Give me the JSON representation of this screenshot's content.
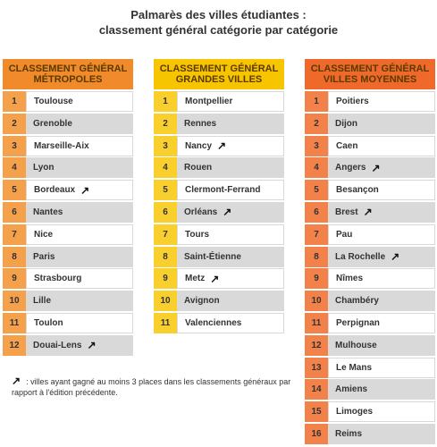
{
  "title_line1": "Palmarès des villes étudiantes :",
  "title_line2": "classement général catégorie par catégorie",
  "columns": [
    {
      "header": "CLASSEMENT GÉNÉRAL MÉTROPOLES",
      "header_color": "#f08a2a",
      "num_color": "#f5a04a",
      "rows": [
        {
          "rank": "1",
          "city": "Toulouse",
          "up": false
        },
        {
          "rank": "2",
          "city": "Grenoble",
          "up": false
        },
        {
          "rank": "3",
          "city": "Marseille-Aix",
          "up": false
        },
        {
          "rank": "4",
          "city": "Lyon",
          "up": false
        },
        {
          "rank": "5",
          "city": "Bordeaux",
          "up": true
        },
        {
          "rank": "6",
          "city": "Nantes",
          "up": false
        },
        {
          "rank": "7",
          "city": "Nice",
          "up": false
        },
        {
          "rank": "8",
          "city": "Paris",
          "up": false
        },
        {
          "rank": "9",
          "city": "Strasbourg",
          "up": false
        },
        {
          "rank": "10",
          "city": "Lille",
          "up": false
        },
        {
          "rank": "11",
          "city": "Toulon",
          "up": false
        },
        {
          "rank": "12",
          "city": "Douai-Lens",
          "up": true
        }
      ]
    },
    {
      "header": "CLASSEMENT GÉNÉRAL GRANDES VILLES",
      "header_color": "#f7c400",
      "num_color": "#f9cf2e",
      "rows": [
        {
          "rank": "1",
          "city": "Montpellier",
          "up": false
        },
        {
          "rank": "2",
          "city": "Rennes",
          "up": false
        },
        {
          "rank": "3",
          "city": "Nancy",
          "up": true
        },
        {
          "rank": "4",
          "city": "Rouen",
          "up": false
        },
        {
          "rank": "5",
          "city": "Clermont-Ferrand",
          "up": false
        },
        {
          "rank": "6",
          "city": "Orléans",
          "up": true
        },
        {
          "rank": "7",
          "city": "Tours",
          "up": false
        },
        {
          "rank": "8",
          "city": "Saint-Étienne",
          "up": false
        },
        {
          "rank": "9",
          "city": "Metz",
          "up": true
        },
        {
          "rank": "10",
          "city": "Avignon",
          "up": false
        },
        {
          "rank": "11",
          "city": "Valenciennes",
          "up": false
        }
      ]
    },
    {
      "header": "CLASSEMENT GÉNÉRAL VILLES MOYENNES",
      "header_color": "#ef6a2a",
      "num_color": "#f2824a",
      "rows": [
        {
          "rank": "1",
          "city": "Poitiers",
          "up": false
        },
        {
          "rank": "2",
          "city": "Dijon",
          "up": false
        },
        {
          "rank": "3",
          "city": "Caen",
          "up": false
        },
        {
          "rank": "4",
          "city": "Angers",
          "up": true
        },
        {
          "rank": "5",
          "city": "Besançon",
          "up": false
        },
        {
          "rank": "6",
          "city": "Brest",
          "up": true
        },
        {
          "rank": "7",
          "city": "Pau",
          "up": false
        },
        {
          "rank": "8",
          "city": "La Rochelle",
          "up": true
        },
        {
          "rank": "9",
          "city": "Nîmes",
          "up": false
        },
        {
          "rank": "10",
          "city": "Chambéry",
          "up": false
        },
        {
          "rank": "11",
          "city": "Perpignan",
          "up": false
        },
        {
          "rank": "12",
          "city": "Mulhouse",
          "up": false
        },
        {
          "rank": "13",
          "city": "Le Mans",
          "up": false
        },
        {
          "rank": "14",
          "city": "Amiens",
          "up": false
        },
        {
          "rank": "15",
          "city": "Limoges",
          "up": false
        },
        {
          "rank": "16",
          "city": "Reims",
          "up": false
        }
      ]
    }
  ],
  "legend_text": ": villes ayant gagné au moins 3 places dans les classements généraux par rapport à l'édition précédente."
}
